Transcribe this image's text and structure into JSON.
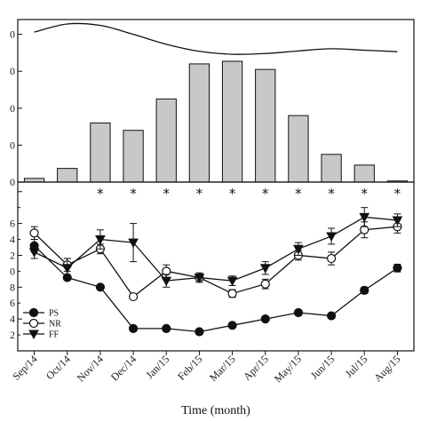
{
  "chart_data": [
    {
      "type": "bar",
      "panel": "top",
      "categories": [
        "Sep/14",
        "Oct/14",
        "Nov/14",
        "Dec/14",
        "Jan/15",
        "Feb/15",
        "Mar/15",
        "Apr/15",
        "May/15",
        "Jun/15",
        "Jul/15",
        "Aug/15"
      ],
      "values": [
        1,
        3.7,
        16,
        14,
        22.5,
        32,
        32.7,
        30.5,
        18,
        7.5,
        4.6,
        0.3
      ],
      "ylim": [
        0,
        44
      ],
      "yticks": [
        0,
        10,
        20,
        30,
        40
      ],
      "tick_label_text": [
        "0",
        "0",
        "0",
        "0",
        "0"
      ],
      "bar_color": "#c8c8c8",
      "overlay_line": {
        "type": "line",
        "values": [
          40.6,
          42.8,
          42.4,
          40.0,
          37.3,
          35.4,
          34.6,
          34.8,
          35.5,
          36.1,
          35.7,
          35.3
        ]
      },
      "annotations": {
        "symbol": "*",
        "categories": [
          "Nov/14",
          "Dec/14",
          "Jan/15",
          "Feb/15",
          "Mar/15",
          "Apr/15",
          "May/15",
          "Jun/15",
          "Jul/15",
          "Aug/15"
        ]
      }
    },
    {
      "type": "line",
      "panel": "bottom",
      "categories": [
        "Sep/14",
        "Oct/14",
        "Nov/14",
        "Dec/14",
        "Jan/15",
        "Feb/15",
        "Mar/15",
        "Apr/15",
        "May/15",
        "Jun/15",
        "Jul/15",
        "Aug/15"
      ],
      "ylim": [
        1,
        6.3
      ],
      "yticks": [
        2,
        3,
        4,
        5,
        6
      ],
      "tick_label_text": [
        "2",
        "4",
        "6",
        "8",
        "0",
        "2",
        "4",
        "6"
      ],
      "series": [
        {
          "name": "PS",
          "marker": "filled-circle",
          "values": [
            4.3,
            3.3,
            3.0,
            1.7,
            1.7,
            1.6,
            1.8,
            2.0,
            2.2,
            2.1,
            2.9,
            3.6
          ],
          "err": [
            0.2,
            0.05,
            0.06,
            0.06,
            0.05,
            0.04,
            0.06,
            0.06,
            0.06,
            0.06,
            0.1,
            0.12
          ]
        },
        {
          "name": "NR",
          "marker": "open-circle",
          "values": [
            4.7,
            3.7,
            4.2,
            2.7,
            3.5,
            3.3,
            2.8,
            3.1,
            4.0,
            3.9,
            4.8,
            4.9
          ],
          "err": [
            0.2,
            0.2,
            0.15,
            0.06,
            0.2,
            0.1,
            0.12,
            0.15,
            0.15,
            0.2,
            0.25,
            0.2
          ]
        },
        {
          "name": "FF",
          "marker": "filled-triangle",
          "values": [
            4.1,
            3.6,
            4.5,
            4.4,
            3.2,
            3.3,
            3.2,
            3.6,
            4.2,
            4.6,
            5.2,
            5.1
          ],
          "err": [
            0.2,
            0.3,
            0.3,
            0.6,
            0.2,
            0.15,
            0.15,
            0.2,
            0.2,
            0.25,
            0.3,
            0.2
          ]
        }
      ],
      "xlabel": "Time (month)"
    }
  ]
}
